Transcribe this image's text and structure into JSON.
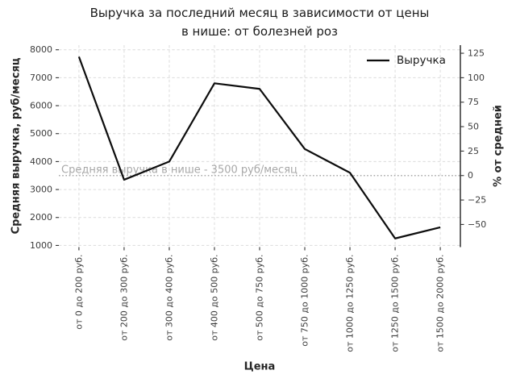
{
  "chart_data": {
    "type": "line",
    "title": "Выручка за последний месяц в зависимости от цены в нише: от болезней роз",
    "title_lines": [
      "Выручка за последний месяц в зависимости от цены",
      "в нише: от болезней роз"
    ],
    "categories": [
      "от 0 до 200 руб.",
      "от 200 до 300 руб.",
      "от 300 до 400 руб.",
      "от 400 до 500 руб.",
      "от 500 до 750 руб.",
      "от 750 до 1000 руб.",
      "от 1000 до 1250 руб.",
      "от 1250 до 1500 руб.",
      "от 1500 до 2000 руб."
    ],
    "series": [
      {
        "name": "Выручка",
        "values": [
          7750,
          3350,
          4000,
          6800,
          6600,
          4450,
          3600,
          1250,
          1650
        ]
      }
    ],
    "xlabel": "Цена",
    "ylabel_left": "Средняя выручка, руб/месяц",
    "ylabel_right": "% от средней",
    "yticks_left": [
      1000,
      2000,
      3000,
      4000,
      5000,
      6000,
      7000,
      8000
    ],
    "yticks_right": [
      -50,
      -25,
      0,
      25,
      50,
      75,
      100,
      125
    ],
    "ylim_left": [
      940,
      8165
    ],
    "average_value": 3500,
    "annotation": {
      "text": "Средняя выручка в нише - 3500 руб/месяц",
      "value": 3500
    },
    "legend": {
      "entries": [
        "Выручка"
      ],
      "position": "upper right"
    },
    "grid": true,
    "xtick_rotation": 90,
    "colors": {
      "line": "#0d0d0d",
      "grid": "#dcdcdc",
      "average_line": "#a8a8a8",
      "annotation_text": "#a8a8a8",
      "title_text": "#1c1c1c",
      "tick_text": "#3c3c3c",
      "background": "#ffffff"
    }
  }
}
